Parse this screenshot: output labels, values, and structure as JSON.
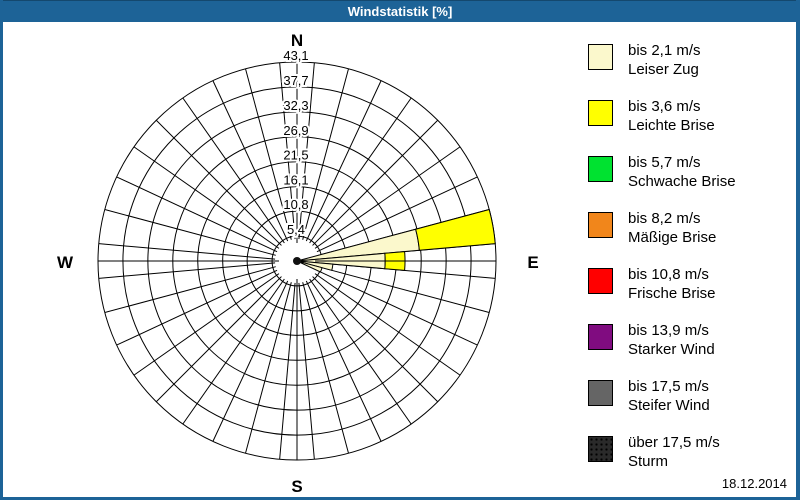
{
  "window": {
    "title": "Windstatistik [%]",
    "titlebar_color": "#1d6397",
    "date": "18.12.2014"
  },
  "compass": {
    "north": "N",
    "east": "E",
    "south": "S",
    "west": "W"
  },
  "chart_data": {
    "type": "wind-rose",
    "title": "Windstatistik [%]",
    "unit": "%",
    "sector_width_deg": 10,
    "sectors_total": 36,
    "max_value": 43.1,
    "ring_values": [
      5.4,
      10.8,
      16.1,
      21.5,
      26.9,
      32.3,
      37.7,
      43.1
    ],
    "ring_labels": [
      "5,4",
      "10,8",
      "16,1",
      "21,5",
      "26,9",
      "32,3",
      "37,7",
      "43,1"
    ],
    "grid": "on",
    "legend_position": "right",
    "sectors": [
      {
        "azimuth_deg": 80,
        "segments": [
          {
            "class": "bis 2,1 m/s",
            "color": "#FBF8CC",
            "value": 26.6
          },
          {
            "class": "bis 3,6 m/s",
            "color": "#FFFF00",
            "value": 16.5
          }
        ]
      },
      {
        "azimuth_deg": 90,
        "segments": [
          {
            "class": "bis 2,1 m/s",
            "color": "#FBF8CC",
            "value": 19.1
          },
          {
            "class": "bis 3,6 m/s",
            "color": "#FFFF00",
            "value": 4.3
          }
        ]
      },
      {
        "azimuth_deg": 100,
        "segments": [
          {
            "class": "bis 2,1 m/s",
            "color": "#FBF8CC",
            "value": 7.8
          }
        ]
      },
      {
        "azimuth_deg": 110,
        "segments": [
          {
            "class": "bis 2,1 m/s",
            "color": "#FBF8CC",
            "value": 5.6
          }
        ]
      }
    ]
  },
  "legend": {
    "items": [
      {
        "color": "#FBF8CC",
        "pattern": "solid",
        "speed": "bis 2,1 m/s",
        "name": "Leiser Zug"
      },
      {
        "color": "#FFFF00",
        "pattern": "solid",
        "speed": "bis 3,6 m/s",
        "name": "Leichte Brise"
      },
      {
        "color": "#00E230",
        "pattern": "solid",
        "speed": "bis 5,7 m/s",
        "name": "Schwache Brise"
      },
      {
        "color": "#F1861B",
        "pattern": "solid",
        "speed": "bis 8,2 m/s",
        "name": "Mäßige Brise"
      },
      {
        "color": "#FF0000",
        "pattern": "solid",
        "speed": "bis 10,8 m/s",
        "name": "Frische Brise"
      },
      {
        "color": "#800C80",
        "pattern": "solid",
        "speed": "bis 13,9 m/s",
        "name": "Starker Wind"
      },
      {
        "color": "#656565",
        "pattern": "solid",
        "speed": "bis 17,5 m/s",
        "name": "Steifer Wind"
      },
      {
        "color": "#2A2A2A",
        "pattern": "dots",
        "speed": "über 17,5 m/s",
        "name": "Sturm"
      }
    ]
  }
}
